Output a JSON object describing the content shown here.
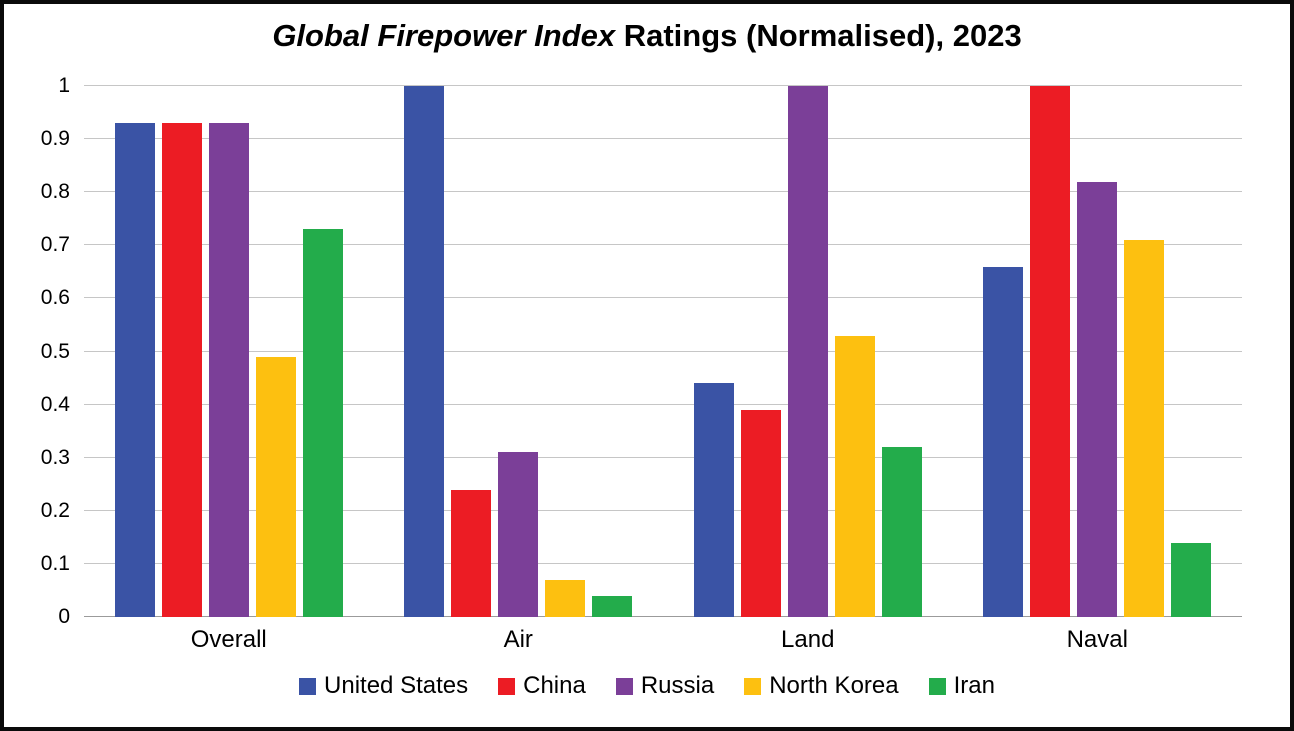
{
  "title": {
    "italic": "Global Firepower Index",
    "rest": " Ratings (Normalised), 2023"
  },
  "chart_data": {
    "type": "bar",
    "title": "Global Firepower Index Ratings (Normalised), 2023",
    "xlabel": "",
    "ylabel": "",
    "ylim": [
      0,
      1
    ],
    "yticks": [
      0,
      0.1,
      0.2,
      0.3,
      0.4,
      0.5,
      0.6,
      0.7,
      0.8,
      0.9,
      1
    ],
    "grid": true,
    "legend_position": "bottom",
    "categories": [
      "Overall",
      "Air",
      "Land",
      "Naval"
    ],
    "series": [
      {
        "name": "United States",
        "color": "#3a53a5",
        "values": [
          0.93,
          1.0,
          0.44,
          0.66
        ]
      },
      {
        "name": "China",
        "color": "#ec1c24",
        "values": [
          0.93,
          0.24,
          0.39,
          1.0
        ]
      },
      {
        "name": "Russia",
        "color": "#7b3f98",
        "values": [
          0.93,
          0.31,
          1.0,
          0.82
        ]
      },
      {
        "name": "North Korea",
        "color": "#fdc010",
        "values": [
          0.49,
          0.07,
          0.53,
          0.71
        ]
      },
      {
        "name": "Iran",
        "color": "#23ac4b",
        "values": [
          0.73,
          0.04,
          0.32,
          0.14
        ]
      }
    ]
  }
}
